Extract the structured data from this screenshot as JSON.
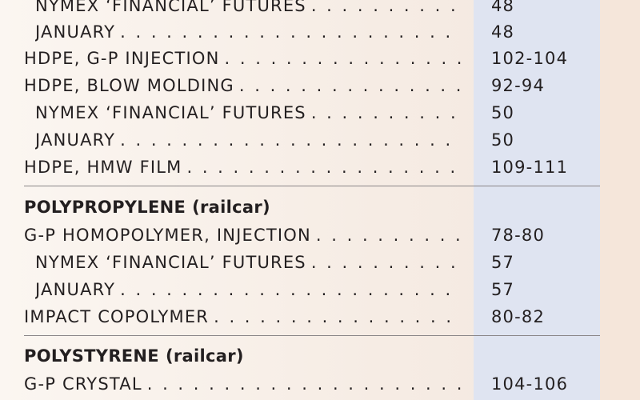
{
  "sections": [
    {
      "rows": [
        {
          "label": "NYMEX ‘FINANCIAL’ FUTURES",
          "value": "48",
          "sub": true
        },
        {
          "label": "JANUARY",
          "value": "48",
          "sub": true
        },
        {
          "label": "HDPE, G-P INJECTION",
          "value": "102-104",
          "sub": false
        },
        {
          "label": "HDPE, BLOW MOLDING",
          "value": "92-94",
          "sub": false
        },
        {
          "label": "NYMEX ‘FINANCIAL’ FUTURES",
          "value": "50",
          "sub": true
        },
        {
          "label": "JANUARY",
          "value": "50",
          "sub": true
        },
        {
          "label": "HDPE, HMW FILM",
          "value": "109-111",
          "sub": false
        }
      ]
    },
    {
      "heading": "POLYPROPYLENE",
      "heading_note": "(railcar)",
      "rows": [
        {
          "label": "G-P HOMOPOLYMER, INJECTION",
          "value": "78-80",
          "sub": false
        },
        {
          "label": "NYMEX ‘FINANCIAL’ FUTURES",
          "value": "57",
          "sub": true
        },
        {
          "label": "JANUARY",
          "value": "57",
          "sub": true
        },
        {
          "label": "IMPACT COPOLYMER",
          "value": "80-82",
          "sub": false
        }
      ]
    },
    {
      "heading": "POLYSTYRENE",
      "heading_note": "(railcar)",
      "rows": [
        {
          "label": "G-P CRYSTAL",
          "value": "104-106",
          "sub": false
        }
      ]
    }
  ]
}
